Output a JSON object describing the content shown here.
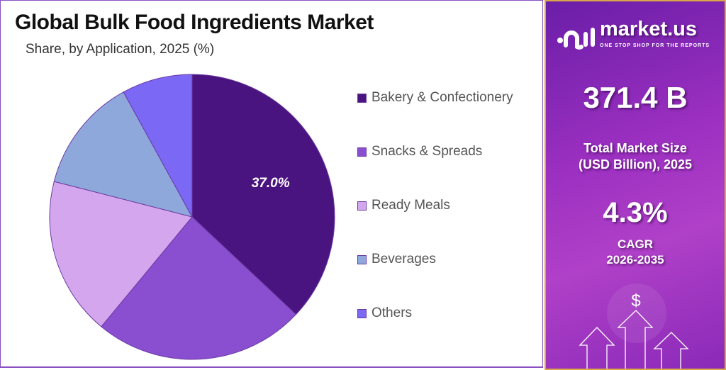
{
  "chart_data": {
    "type": "pie",
    "title": "Global Bulk Food Ingredients Market",
    "subtitle": "Share, by Application, 2025 (%)",
    "categories": [
      "Bakery & Confectionery",
      "Snacks & Spreads",
      "Ready Meals",
      "Beverages",
      "Others"
    ],
    "values": [
      37.0,
      24.0,
      18.0,
      13.0,
      8.0
    ],
    "colors": [
      "#4a1480",
      "#8a4fd0",
      "#d4a6ee",
      "#8fa8dc",
      "#7b68f5"
    ],
    "data_labels": [
      "37.0%",
      "",
      "",
      "",
      ""
    ],
    "start_angle": "12 o'clock",
    "direction": "clockwise",
    "legend_position": "right"
  },
  "sidebar": {
    "brand": "market.us",
    "tagline": "ONE STOP SHOP FOR THE REPORTS",
    "market_size": "371.4 B",
    "market_size_label_1": "Total Market Size",
    "market_size_label_2": "(USD Billion), 2025",
    "cagr": "4.3%",
    "cagr_label_1": "CAGR",
    "cagr_label_2": "2026-2035",
    "dollar_symbol": "$"
  }
}
